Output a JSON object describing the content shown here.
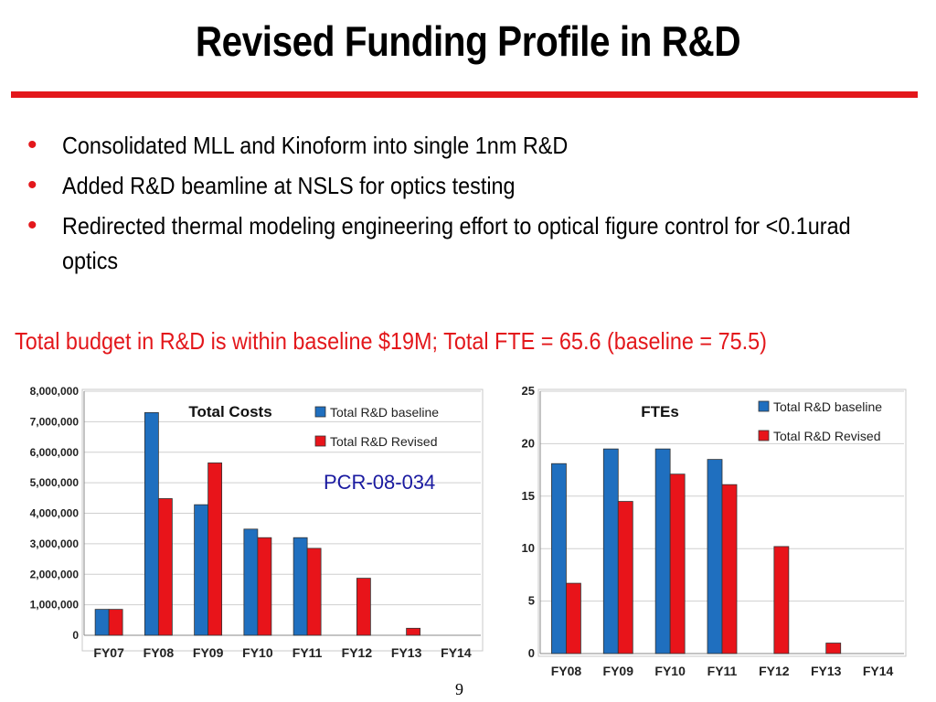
{
  "slide": {
    "title": "Revised Funding Profile in R&D",
    "bullets": [
      "Consolidated MLL and Kinoform into single 1nm R&D",
      "Added R&D beamline at NSLS for optics testing",
      "Redirected thermal modeling engineering effort to optical figure control for <0.1urad optics"
    ],
    "budget_note": "Total budget in R&D is within baseline $19M;  Total FTE = 65.6 (baseline = 75.5)",
    "pcr_label": "PCR-08-034",
    "page_number": "9"
  },
  "colors": {
    "accent": "#e3171b",
    "baseline": "#1f6fbf",
    "revised": "#e8141a",
    "pcr": "#1a1aa0"
  },
  "chart_data": [
    {
      "type": "bar",
      "title": "Total Costs",
      "categories": [
        "FY07",
        "FY08",
        "FY09",
        "FY10",
        "FY11",
        "FY12",
        "FY13",
        "FY14"
      ],
      "series": [
        {
          "name": "Total R&D baseline",
          "values": [
            850000,
            7300000,
            4280000,
            3480000,
            3200000,
            0,
            0,
            0
          ]
        },
        {
          "name": "Total R&D Revised",
          "values": [
            850000,
            4480000,
            5650000,
            3200000,
            2850000,
            1870000,
            230000,
            0
          ]
        }
      ],
      "ylim": [
        0,
        8000000
      ],
      "yticks": [
        0,
        1000000,
        2000000,
        3000000,
        4000000,
        5000000,
        6000000,
        7000000,
        8000000
      ],
      "ytick_labels": [
        "0",
        "1,000,000",
        "2,000,000",
        "3,000,000",
        "4,000,000",
        "5,000,000",
        "6,000,000",
        "7,000,000",
        "8,000,000"
      ],
      "grid": true,
      "legend": "top-right"
    },
    {
      "type": "bar",
      "title": "FTEs",
      "categories": [
        "FY08",
        "FY09",
        "FY10",
        "FY11",
        "FY12",
        "FY13",
        "FY14"
      ],
      "series": [
        {
          "name": "Total R&D baseline",
          "values": [
            18.1,
            19.5,
            19.5,
            18.5,
            0,
            0,
            0
          ]
        },
        {
          "name": "Total R&D Revised",
          "values": [
            6.7,
            14.5,
            17.1,
            16.1,
            10.2,
            1.0,
            0
          ]
        }
      ],
      "ylim": [
        0,
        25
      ],
      "yticks": [
        0,
        5,
        10,
        15,
        20,
        25
      ],
      "ytick_labels": [
        "0",
        "5",
        "10",
        "15",
        "20",
        "25"
      ],
      "grid": true,
      "legend": "top-right"
    }
  ]
}
